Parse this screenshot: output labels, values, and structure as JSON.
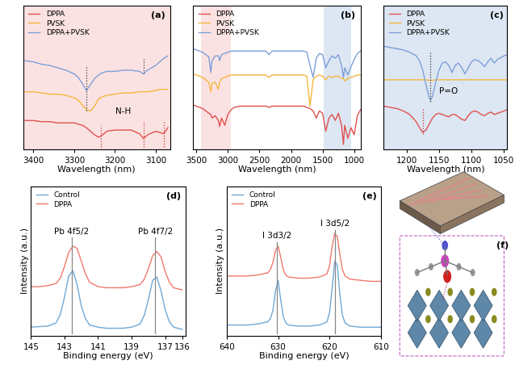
{
  "chart_data": [
    {
      "type": "line",
      "title": "(a)",
      "xlabel": "Wavelength (nm)",
      "x": [
        3420,
        3400,
        3380,
        3360,
        3340,
        3320,
        3300,
        3290,
        3280,
        3270,
        3260,
        3250,
        3240,
        3230,
        3220,
        3200,
        3180,
        3160,
        3140,
        3130,
        3120,
        3100,
        3090,
        3080,
        3070
      ],
      "xlim": [
        3425,
        3065
      ],
      "xticks": [
        3400,
        3300,
        3200,
        3100
      ],
      "ylim": [
        0,
        12
      ],
      "tick_labels": "x",
      "legend": "upper left",
      "shaded": [
        {
          "from": 3425,
          "to": 3065,
          "color": "#fbe2e2"
        }
      ],
      "series": [
        {
          "name": "DPPA",
          "color": "#e0524e",
          "values": [
            2.4,
            2.4,
            2.3,
            2.3,
            2.2,
            2.2,
            2.2,
            2.1,
            2.0,
            1.8,
            1.5,
            1.2,
            1.0,
            1.2,
            1.5,
            1.6,
            1.6,
            1.6,
            1.3,
            0.9,
            1.2,
            1.5,
            1.4,
            1.3,
            1.8
          ]
        },
        {
          "name": "PVSK",
          "color": "#f4b63f",
          "values": [
            4.8,
            4.8,
            4.7,
            4.6,
            4.6,
            4.5,
            4.3,
            4.1,
            3.7,
            3.3,
            3.2,
            3.6,
            4.2,
            4.4,
            4.5,
            4.6,
            4.7,
            4.7,
            4.8,
            4.8,
            4.8,
            4.9,
            5.0,
            5.0,
            5.0
          ]
        },
        {
          "name": "DPPA+PVSK",
          "color": "#7d9fd8",
          "values": [
            7.4,
            7.3,
            7.1,
            7.0,
            6.8,
            6.6,
            6.3,
            6.0,
            5.5,
            4.9,
            5.4,
            5.9,
            6.2,
            6.4,
            6.5,
            6.5,
            6.6,
            6.6,
            6.5,
            6.3,
            6.6,
            7.0,
            7.3,
            7.6,
            7.8
          ]
        }
      ],
      "reference_lines": [
        {
          "x": 3270,
          "ymin": 3.2,
          "ymax": 7.0,
          "color": "#333333",
          "line_style": "dotted"
        },
        {
          "x": 3130,
          "ymin": 6.3,
          "ymax": 7.6,
          "color": "#333333",
          "line_style": "dotted"
        },
        {
          "x": 3235,
          "ymin": 0.2,
          "ymax": 2.0,
          "color": "#c0302c",
          "line_style": "dotted"
        },
        {
          "x": 3130,
          "ymin": 0.2,
          "ymax": 2.3,
          "color": "#c0302c",
          "line_style": "dotted"
        },
        {
          "x": 3080,
          "ymin": 0.2,
          "ymax": 2.3,
          "color": "#c0302c",
          "line_style": "dotted"
        }
      ],
      "annotations": [
        {
          "text": "N-H",
          "x": 3180,
          "y": 2.8
        }
      ]
    },
    {
      "type": "line",
      "title": "(b)",
      "xlabel": "Wavelength (nm)",
      "x": [
        3550,
        3500,
        3450,
        3400,
        3350,
        3300,
        3270,
        3250,
        3200,
        3150,
        3130,
        3100,
        3050,
        3000,
        2950,
        2900,
        2800,
        2600,
        2400,
        2350,
        2300,
        2200,
        2000,
        1800,
        1750,
        1700,
        1650,
        1600,
        1550,
        1500,
        1450,
        1400,
        1350,
        1300,
        1250,
        1200,
        1170,
        1150,
        1100,
        1050,
        1000,
        950,
        900
      ],
      "xlim": [
        3550,
        900
      ],
      "xticks": [
        3500,
        3000,
        2500,
        2000,
        1500,
        1000
      ],
      "ylim": [
        0,
        12
      ],
      "tick_labels": "x",
      "legend": "upper left",
      "shaded": [
        {
          "from": 3420,
          "to": 2950,
          "color": "#fbe2e2"
        },
        {
          "from": 1480,
          "to": 1050,
          "color": "#dde6f3"
        }
      ],
      "series": [
        {
          "name": "DPPA",
          "color": "#e0524e",
          "values": [
            3.7,
            3.6,
            3.5,
            3.4,
            3.2,
            3.0,
            2.9,
            2.6,
            2.8,
            2.4,
            1.9,
            2.6,
            2.0,
            2.9,
            3.3,
            3.5,
            3.6,
            3.6,
            3.6,
            3.5,
            3.6,
            3.6,
            3.6,
            3.6,
            3.5,
            3.4,
            3.2,
            2.6,
            3.2,
            3.0,
            1.5,
            2.6,
            2.9,
            2.4,
            3.0,
            2.0,
            0.4,
            2.0,
            0.9,
            1.8,
            1.2,
            2.8,
            3.3
          ]
        },
        {
          "name": "PVSK",
          "color": "#f4b63f",
          "values": [
            6.3,
            6.2,
            6.1,
            6.0,
            5.8,
            5.6,
            4.8,
            5.5,
            5.6,
            5.0,
            5.6,
            5.9,
            6.0,
            6.1,
            6.2,
            6.2,
            6.2,
            6.2,
            6.2,
            6.0,
            6.2,
            6.2,
            6.2,
            6.2,
            6.1,
            3.6,
            5.8,
            6.1,
            6.2,
            6.1,
            5.8,
            6.1,
            6.0,
            6.1,
            6.1,
            5.9,
            5.9,
            5.7,
            5.9,
            6.0,
            6.1,
            6.2,
            6.2
          ]
        },
        {
          "name": "DPPA+PVSK",
          "color": "#7d9fd8",
          "values": [
            8.4,
            8.3,
            8.2,
            8.1,
            7.9,
            7.7,
            6.4,
            7.4,
            7.8,
            7.8,
            7.4,
            7.9,
            8.0,
            8.1,
            8.2,
            8.2,
            8.2,
            8.2,
            8.2,
            7.9,
            8.2,
            8.2,
            8.2,
            8.2,
            8.1,
            7.0,
            6.0,
            7.6,
            8.0,
            7.9,
            6.8,
            7.4,
            7.8,
            7.6,
            7.9,
            7.0,
            6.0,
            6.8,
            6.2,
            6.9,
            7.5,
            8.0,
            8.2
          ]
        }
      ],
      "reference_lines": [],
      "annotations": []
    },
    {
      "type": "line",
      "title": "(c)",
      "xlabel": "Wavelength (nm)",
      "x": [
        1235,
        1225,
        1215,
        1205,
        1195,
        1185,
        1180,
        1175,
        1170,
        1165,
        1163,
        1160,
        1155,
        1150,
        1145,
        1140,
        1135,
        1130,
        1125,
        1120,
        1115,
        1110,
        1105,
        1100,
        1095,
        1090,
        1085,
        1080,
        1075,
        1070,
        1065,
        1060,
        1050,
        1045
      ],
      "xlim": [
        1235,
        1045
      ],
      "xticks": [
        1200,
        1150,
        1100,
        1050
      ],
      "ylim": [
        0,
        12
      ],
      "tick_labels": "x",
      "legend": "upper left",
      "shaded": [
        {
          "from": 1235,
          "to": 1045,
          "color": "#dde6f3"
        }
      ],
      "series": [
        {
          "name": "DPPA",
          "color": "#e0524e",
          "values": [
            3.6,
            3.5,
            3.4,
            3.2,
            2.9,
            2.3,
            1.8,
            1.4,
            1.6,
            2.1,
            2.3,
            2.6,
            2.9,
            3.0,
            2.9,
            2.8,
            2.7,
            2.9,
            2.9,
            2.7,
            2.5,
            2.4,
            2.8,
            3.1,
            3.2,
            3.1,
            2.9,
            2.8,
            3.0,
            3.1,
            2.9,
            3.0,
            3.2,
            3.3
          ]
        },
        {
          "name": "PVSK",
          "color": "#f4b63f",
          "values": [
            5.8,
            5.8,
            5.8,
            5.8,
            5.8,
            5.8,
            5.8,
            5.8,
            5.8,
            5.75,
            5.75,
            5.75,
            5.8,
            5.8,
            5.8,
            5.8,
            5.8,
            5.8,
            5.8,
            5.8,
            5.8,
            5.8,
            5.8,
            5.8,
            5.8,
            5.8,
            5.8,
            5.8,
            5.8,
            5.8,
            5.8,
            5.8,
            5.8,
            5.8
          ]
        },
        {
          "name": "DPPA+PVSK",
          "color": "#7d9fd8",
          "values": [
            8.6,
            8.5,
            8.4,
            8.3,
            8.1,
            7.8,
            7.4,
            6.6,
            5.4,
            4.3,
            4.1,
            4.4,
            5.6,
            6.6,
            7.2,
            7.3,
            7.0,
            6.4,
            7.0,
            7.2,
            6.8,
            6.3,
            6.8,
            7.3,
            7.5,
            7.4,
            7.2,
            6.9,
            7.3,
            7.6,
            7.2,
            7.5,
            7.8,
            7.9
          ]
        }
      ],
      "reference_lines": [
        {
          "x": 1163,
          "ymin": 4.0,
          "ymax": 8.2,
          "color": "#333333",
          "line_style": "dotted"
        },
        {
          "x": 1175,
          "ymin": 1.3,
          "ymax": 3.5,
          "color": "#c0302c",
          "line_style": "dotted"
        }
      ],
      "annotations": [
        {
          "text": "P=O",
          "x": 1135,
          "y": 4.5
        }
      ]
    },
    {
      "type": "line",
      "title": "(d)",
      "xlabel": "Binding energy (eV)",
      "ylabel": "Intensity (a.u.)",
      "x": [
        145,
        144.5,
        144,
        143.5,
        143.25,
        143,
        142.75,
        142.5,
        142.25,
        142,
        141.75,
        141.5,
        141,
        140.5,
        140,
        139.5,
        139,
        138.5,
        138.25,
        138,
        137.75,
        137.5,
        137.25,
        137,
        136.75,
        136.5,
        136
      ],
      "xlim": [
        145,
        135.8
      ],
      "xticks": [
        145,
        143,
        141,
        139,
        137,
        136
      ],
      "ylim": [
        0,
        14
      ],
      "tick_labels": "x",
      "legend": "upper left",
      "shaded": [],
      "series": [
        {
          "name": "Control",
          "color": "#6fa8d6",
          "values": [
            0.8,
            0.85,
            0.9,
            1.2,
            2.0,
            3.6,
            5.6,
            6.1,
            4.8,
            2.8,
            1.6,
            1.0,
            0.8,
            0.7,
            0.7,
            0.7,
            0.8,
            1.1,
            1.9,
            3.4,
            5.2,
            5.5,
            4.2,
            2.4,
            1.3,
            0.8,
            0.6
          ]
        },
        {
          "name": "DPPA",
          "color": "#f0796b",
          "values": [
            4.6,
            4.6,
            4.7,
            4.9,
            5.4,
            6.5,
            7.8,
            8.4,
            8.2,
            7.0,
            5.8,
            5.0,
            4.6,
            4.5,
            4.5,
            4.5,
            4.6,
            4.8,
            5.3,
            6.3,
            7.5,
            7.9,
            7.4,
            6.0,
            5.0,
            4.5,
            4.3
          ]
        }
      ],
      "reference_lines": [
        {
          "x": 142.55,
          "ymin": 0.2,
          "ymax": 9.2,
          "color": "#888888",
          "line_style": "solid"
        },
        {
          "x": 137.6,
          "ymin": 0.2,
          "ymax": 9.2,
          "color": "#888888",
          "line_style": "solid"
        }
      ],
      "annotations": [
        {
          "text": "Pb 4f5/2",
          "x": 142.6,
          "y": 9.4
        },
        {
          "text": "Pb 4f7/2",
          "x": 137.6,
          "y": 9.4
        }
      ]
    },
    {
      "type": "line",
      "title": "(e)",
      "xlabel": "Binding energy (eV)",
      "ylabel": "Intensity (a.u.)",
      "x": [
        640,
        638,
        636,
        634,
        632,
        631.5,
        631,
        630.5,
        630,
        629.5,
        629,
        628.5,
        628,
        626,
        624,
        622,
        620.5,
        620,
        619.5,
        619,
        618.5,
        618,
        617.5,
        617,
        616,
        614,
        612,
        610
      ],
      "xlim": [
        640,
        610
      ],
      "xticks": [
        640,
        630,
        620,
        610
      ],
      "ylim": [
        0,
        14
      ],
      "tick_labels": "x",
      "legend": "upper left",
      "shaded": [],
      "series": [
        {
          "name": "Control",
          "color": "#6fa8d6",
          "values": [
            1.0,
            1.0,
            1.0,
            1.1,
            1.3,
            1.6,
            2.4,
            4.2,
            5.2,
            3.4,
            1.8,
            1.2,
            1.0,
            0.9,
            0.9,
            1.0,
            1.3,
            2.2,
            4.5,
            7.0,
            6.6,
            3.8,
            1.9,
            1.2,
            0.9,
            0.8,
            0.8,
            0.8
          ]
        },
        {
          "name": "DPPA",
          "color": "#f0796b",
          "values": [
            5.6,
            5.6,
            5.6,
            5.7,
            5.9,
            6.2,
            6.9,
            8.0,
            8.4,
            7.4,
            6.2,
            5.7,
            5.5,
            5.4,
            5.4,
            5.5,
            5.8,
            6.6,
            8.4,
            9.6,
            9.3,
            7.6,
            6.2,
            5.6,
            5.3,
            5.2,
            5.1,
            5.1
          ]
        }
      ],
      "reference_lines": [
        {
          "x": 630.2,
          "ymin": 0.2,
          "ymax": 8.8,
          "color": "#888888",
          "line_style": "solid"
        },
        {
          "x": 618.9,
          "ymin": 0.2,
          "ymax": 9.9,
          "color": "#888888",
          "line_style": "solid"
        }
      ],
      "annotations": [
        {
          "text": "I 3d3/2",
          "x": 630.2,
          "y": 9.0
        },
        {
          "text": "I 3d5/2",
          "x": 618.9,
          "y": 10.1
        }
      ]
    }
  ],
  "illustration": {
    "label": "(f)"
  }
}
